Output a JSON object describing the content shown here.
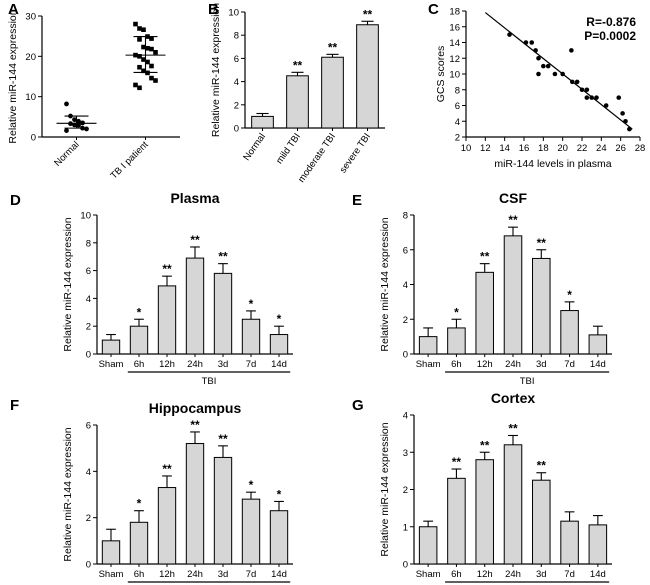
{
  "chart_data": [
    {
      "panel": "A",
      "type": "scatter",
      "title": "",
      "xlabel": "",
      "ylabel": "Relative miR-144 expression",
      "ylim": [
        0,
        30
      ],
      "yticks": [
        0,
        10,
        20,
        30
      ],
      "categories": [
        "Normal",
        "TB I patient"
      ],
      "groups": [
        {
          "name": "Normal",
          "points": [
            8.2,
            5.2,
            4.3,
            3.9,
            3.5,
            3.3,
            3.0,
            2.9,
            2.2,
            2.0,
            1.6
          ],
          "mean": 3.4,
          "sd_low": 2.2,
          "sd_high": 5.2
        },
        {
          "name": "TB I patient",
          "points": [
            28.0,
            26.9,
            26.6,
            24.9,
            24.4,
            24.2,
            22.3,
            22.0,
            21.8,
            21.0,
            20.3,
            20.0,
            19.2,
            18.6,
            17.6,
            17.3,
            16.4,
            15.9,
            14.6,
            14.0,
            12.9,
            12.2
          ],
          "mean": 20.3,
          "sd_low": 16.0,
          "sd_high": 24.9
        }
      ]
    },
    {
      "panel": "B",
      "type": "bar",
      "title": "",
      "xlabel": "",
      "ylabel": "Relative miR-144 expression",
      "ylim": [
        0,
        10
      ],
      "yticks": [
        0,
        2,
        4,
        6,
        8,
        10
      ],
      "categories": [
        "Normal",
        "mild TBI",
        "moderate TBI",
        "severe TBI"
      ],
      "values": [
        1.0,
        4.5,
        6.1,
        8.9
      ],
      "errors": [
        0.25,
        0.3,
        0.25,
        0.3
      ],
      "significance": [
        "",
        "**",
        "**",
        "**"
      ]
    },
    {
      "panel": "C",
      "type": "scatter",
      "title": "",
      "xlabel": "miR-144 levels in plasma",
      "ylabel": "GCS scores",
      "xlim": [
        10,
        28
      ],
      "ylim": [
        2,
        18
      ],
      "xticks": [
        10,
        12,
        14,
        16,
        18,
        20,
        22,
        24,
        26,
        28
      ],
      "yticks": [
        2,
        4,
        6,
        8,
        10,
        12,
        14,
        16,
        18
      ],
      "annotation_r": "R=-0.876",
      "annotation_p": "P=0.0002",
      "x": [
        14.5,
        16.2,
        16.8,
        17.2,
        17.5,
        17.5,
        18.0,
        18.5,
        19.2,
        20.0,
        20.9,
        21.0,
        21.5,
        22.0,
        22.5,
        22.5,
        23.0,
        23.5,
        24.5,
        25.8,
        26.2,
        26.5,
        26.9
      ],
      "y": [
        15,
        14,
        14,
        13,
        12,
        10,
        11,
        11,
        10,
        10,
        13,
        9,
        9,
        8,
        8,
        7,
        7,
        7,
        6,
        7,
        5,
        4,
        3
      ],
      "fit": {
        "x0": 12.0,
        "y0": 17.8,
        "x1": 27.2,
        "y1": 3.0
      }
    },
    {
      "panel": "D",
      "type": "bar",
      "title": "Plasma",
      "xlabel": "TBI",
      "ylabel": "Relative miR-144 expression",
      "ylim": [
        0,
        10
      ],
      "yticks": [
        0,
        2,
        4,
        6,
        8,
        10
      ],
      "categories": [
        "Sham",
        "6h",
        "12h",
        "24h",
        "3d",
        "7d",
        "14d"
      ],
      "values": [
        1.0,
        2.0,
        4.9,
        6.9,
        5.8,
        2.5,
        1.4
      ],
      "errors": [
        0.4,
        0.5,
        0.7,
        0.8,
        0.7,
        0.6,
        0.6
      ],
      "significance": [
        "",
        "*",
        "**",
        "**",
        "**",
        "*",
        "*"
      ]
    },
    {
      "panel": "E",
      "type": "bar",
      "title": "CSF",
      "xlabel": "TBI",
      "ylabel": "Relative miR-144 expression",
      "ylim": [
        0,
        8
      ],
      "yticks": [
        0,
        2,
        4,
        6,
        8
      ],
      "categories": [
        "Sham",
        "6h",
        "12h",
        "24h",
        "3d",
        "7d",
        "14d"
      ],
      "values": [
        1.0,
        1.5,
        4.7,
        6.8,
        5.5,
        2.5,
        1.1
      ],
      "errors": [
        0.5,
        0.5,
        0.5,
        0.5,
        0.5,
        0.5,
        0.5
      ],
      "significance": [
        "",
        "*",
        "**",
        "**",
        "**",
        "*",
        ""
      ]
    },
    {
      "panel": "F",
      "type": "bar",
      "title": "Hippocampus",
      "xlabel": "TBI",
      "ylabel": "Relative miR-144 expression",
      "ylim": [
        0,
        6
      ],
      "yticks": [
        0,
        2,
        4,
        6
      ],
      "categories": [
        "Sham",
        "6h",
        "12h",
        "24h",
        "3d",
        "7d",
        "14d"
      ],
      "values": [
        1.0,
        1.8,
        3.3,
        5.2,
        4.6,
        2.8,
        2.3
      ],
      "errors": [
        0.5,
        0.5,
        0.5,
        0.5,
        0.5,
        0.3,
        0.4
      ],
      "significance": [
        "",
        "*",
        "**",
        "**",
        "**",
        "*",
        "*"
      ]
    },
    {
      "panel": "G",
      "type": "bar",
      "title": "Cortex",
      "xlabel": "TBI",
      "ylabel": "Relative miR-144 expression",
      "ylim": [
        0,
        4
      ],
      "yticks": [
        0,
        1,
        2,
        3,
        4
      ],
      "categories": [
        "Sham",
        "6h",
        "12h",
        "24h",
        "3d",
        "7d",
        "14d"
      ],
      "values": [
        1.0,
        2.3,
        2.8,
        3.2,
        2.25,
        1.15,
        1.05
      ],
      "errors": [
        0.15,
        0.25,
        0.2,
        0.25,
        0.2,
        0.25,
        0.25
      ],
      "significance": [
        "",
        "**",
        "**",
        "**",
        "**",
        "",
        ""
      ]
    }
  ]
}
